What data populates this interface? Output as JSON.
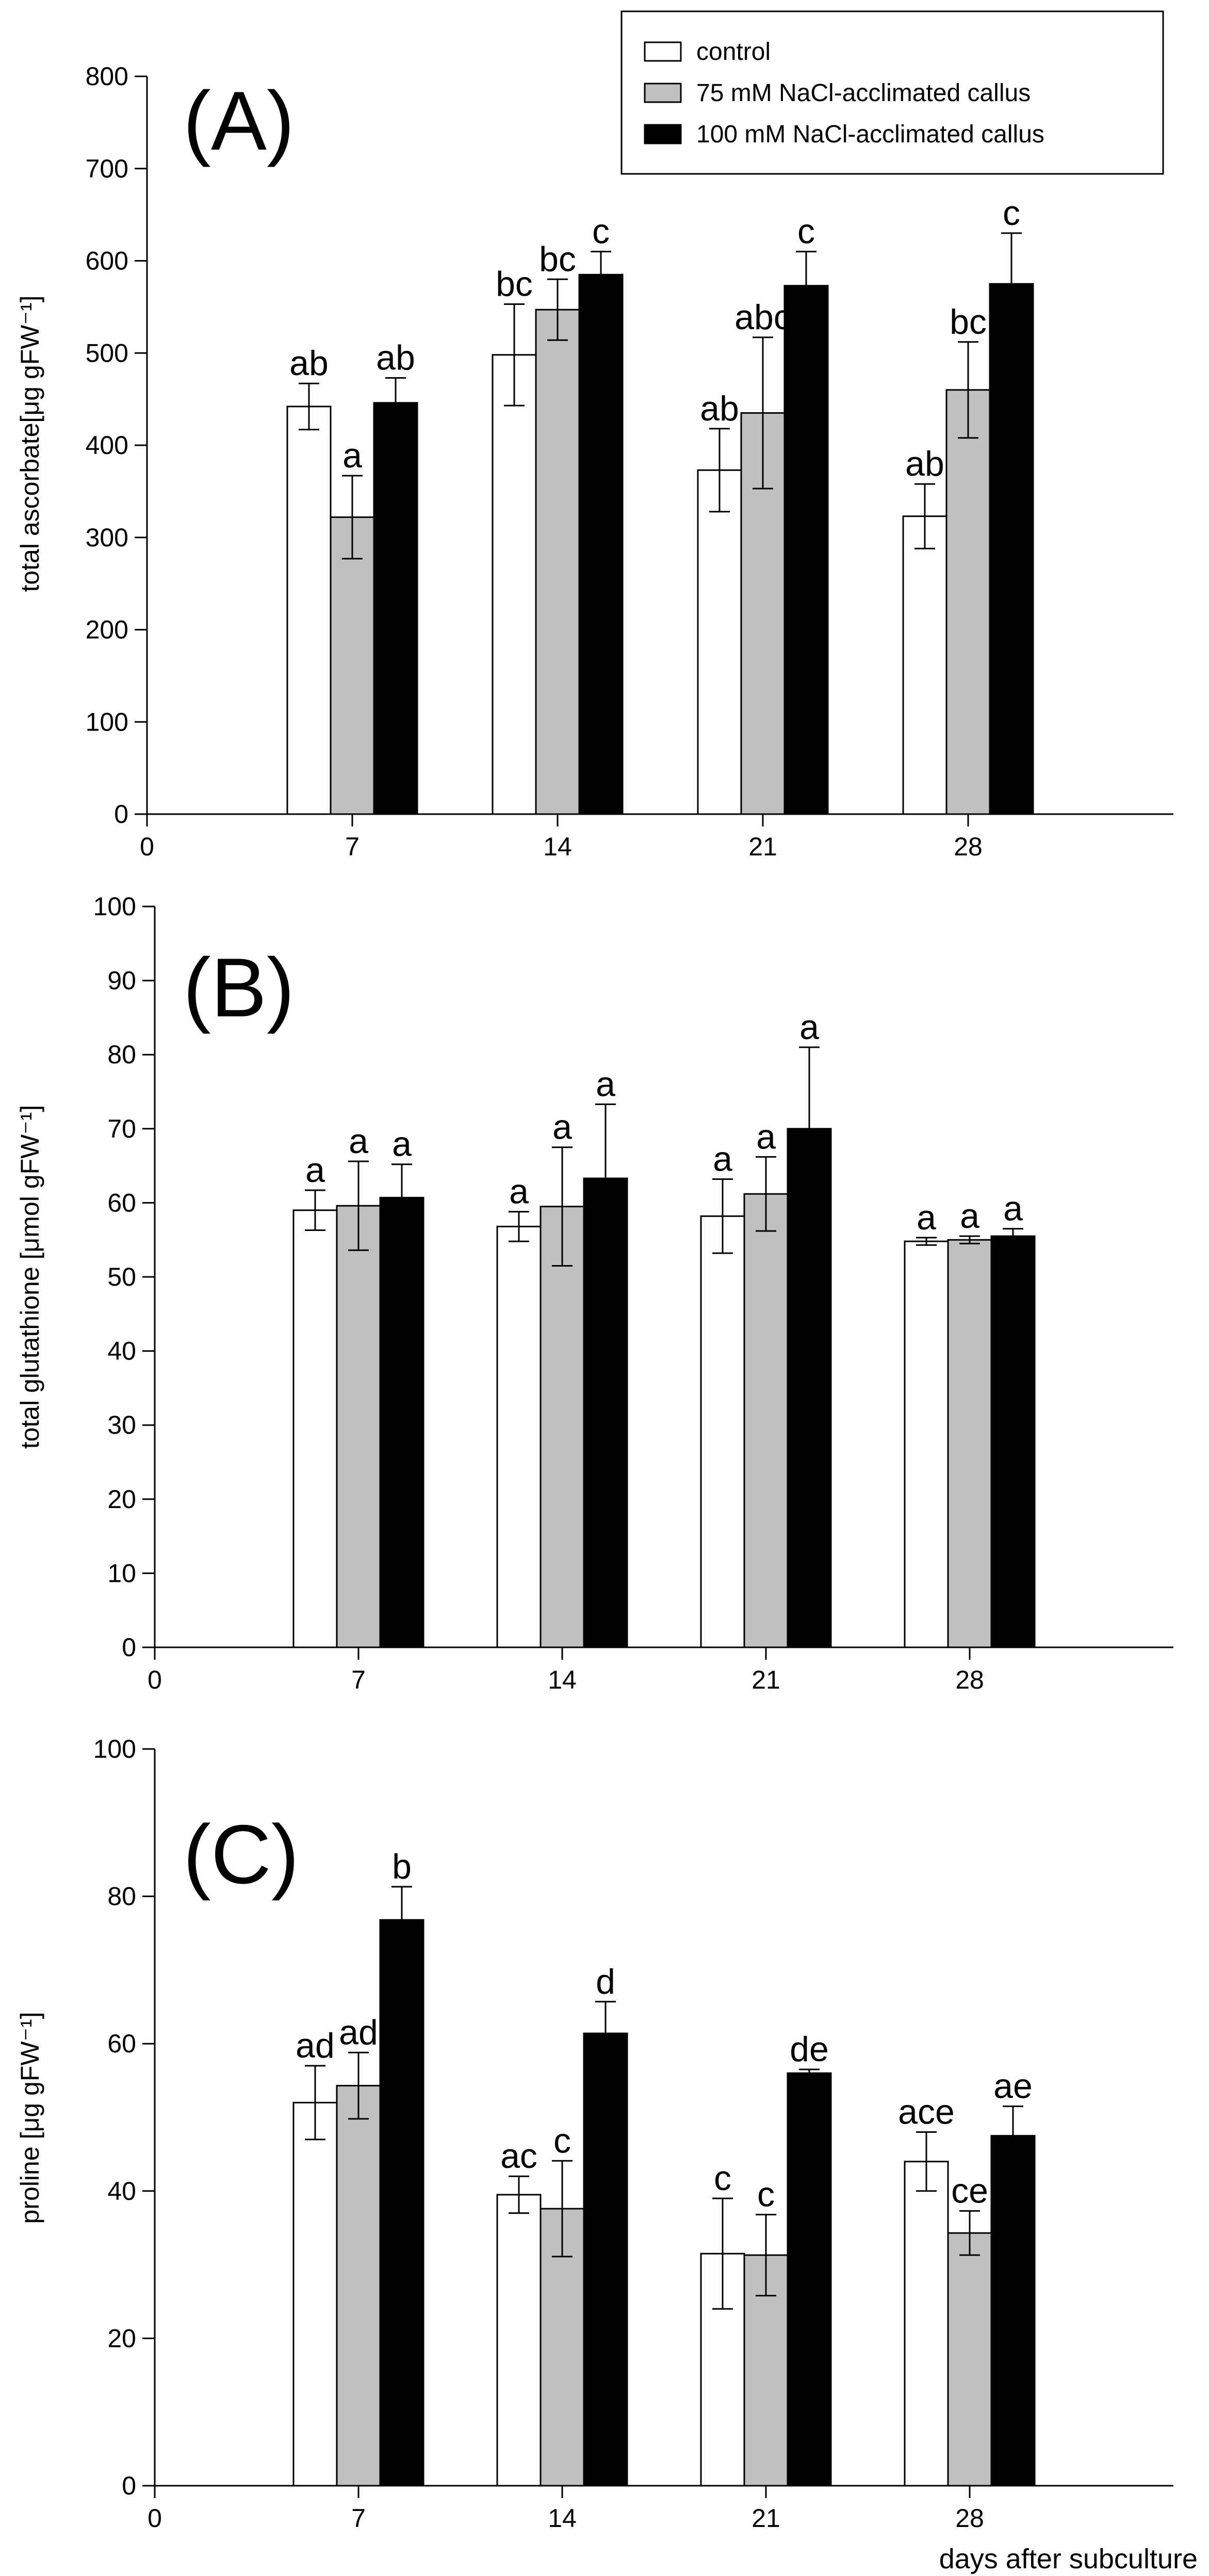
{
  "legend": {
    "entries": [
      {
        "label": "control",
        "color": "#ffffff"
      },
      {
        "label": "75 mM NaCl-acclimated callus",
        "color": "#c0c0c0"
      },
      {
        "label": "100 mM NaCl-acclimated callus",
        "color": "#000000"
      }
    ]
  },
  "chart_data": [
    {
      "type": "bar",
      "panel": "(A)",
      "ylabel": "total ascorbate[μg gFW⁻¹]",
      "xlabel": "",
      "x_ticks": [
        "0",
        "7",
        "14",
        "21",
        "28"
      ],
      "y_ticks": [
        "0",
        "100",
        "200",
        "300",
        "400",
        "500",
        "600",
        "700",
        "800"
      ],
      "xlim": [
        0,
        35
      ],
      "ylim": [
        0,
        800
      ],
      "categories": [
        "7",
        "14",
        "21",
        "28"
      ],
      "series": [
        {
          "name": "control",
          "color": "#ffffff",
          "values": [
            442,
            498,
            373,
            323
          ],
          "errors": [
            25,
            55,
            45,
            35
          ],
          "letters": [
            "ab",
            "bc",
            "ab",
            "ab"
          ]
        },
        {
          "name": "75 mM NaCl-acclimated callus",
          "color": "#c0c0c0",
          "values": [
            322,
            547,
            435,
            460
          ],
          "errors": [
            45,
            33,
            82,
            52
          ],
          "letters": [
            "a",
            "bc",
            "abc",
            "bc"
          ]
        },
        {
          "name": "100 mM NaCl-acclimated callus",
          "color": "#000000",
          "values": [
            446,
            585,
            573,
            575
          ],
          "errors": [
            27,
            25,
            37,
            55
          ],
          "letters": [
            "ab",
            "c",
            "c",
            "c"
          ]
        }
      ]
    },
    {
      "type": "bar",
      "panel": "(B)",
      "ylabel": "total glutathione [μmol gFW⁻¹]",
      "xlabel": "",
      "x_ticks": [
        "0",
        "7",
        "14",
        "21",
        "28"
      ],
      "y_ticks": [
        "0",
        "10",
        "20",
        "30",
        "40",
        "50",
        "60",
        "70",
        "80",
        "90",
        "100"
      ],
      "xlim": [
        0,
        35
      ],
      "ylim": [
        0,
        100
      ],
      "categories": [
        "7",
        "14",
        "21",
        "28"
      ],
      "series": [
        {
          "name": "control",
          "color": "#ffffff",
          "values": [
            59,
            56.8,
            58.2,
            54.8
          ],
          "errors": [
            2.7,
            2,
            5,
            0.5
          ],
          "letters": [
            "a",
            "a",
            "a",
            "a"
          ]
        },
        {
          "name": "75 mM NaCl-acclimated callus",
          "color": "#c0c0c0",
          "values": [
            59.6,
            59.5,
            61.2,
            55
          ],
          "errors": [
            6,
            8,
            5,
            0.5
          ],
          "letters": [
            "a",
            "a",
            "a",
            "a"
          ]
        },
        {
          "name": "100 mM NaCl-acclimated callus",
          "color": "#000000",
          "values": [
            60.7,
            63.3,
            70,
            55.5
          ],
          "errors": [
            4.5,
            10,
            11,
            1
          ],
          "letters": [
            "a",
            "a",
            "a",
            "a"
          ]
        }
      ]
    },
    {
      "type": "bar",
      "panel": "(C)",
      "ylabel": "proline [μg gFW⁻¹]",
      "xlabel": "days after subculture",
      "x_ticks": [
        "0",
        "7",
        "14",
        "21",
        "28"
      ],
      "y_ticks": [
        "0",
        "20",
        "40",
        "60",
        "80",
        "100"
      ],
      "xlim": [
        0,
        35
      ],
      "ylim": [
        0,
        100
      ],
      "categories": [
        "7",
        "14",
        "21",
        "28"
      ],
      "series": [
        {
          "name": "control",
          "color": "#ffffff",
          "values": [
            52,
            39.5,
            31.5,
            44
          ],
          "errors": [
            5,
            2.5,
            7.5,
            4
          ],
          "letters": [
            "ad",
            "ac",
            "c",
            "ace"
          ]
        },
        {
          "name": "75 mM NaCl-acclimated callus",
          "color": "#c0c0c0",
          "values": [
            54.3,
            37.6,
            31.3,
            34.3
          ],
          "errors": [
            4.5,
            6.5,
            5.5,
            3
          ],
          "letters": [
            "ad",
            "c",
            "c",
            "ce"
          ]
        },
        {
          "name": "100 mM NaCl-acclimated callus",
          "color": "#000000",
          "values": [
            76.8,
            61.4,
            56,
            47.5
          ],
          "errors": [
            4.5,
            4.3,
            0.5,
            4
          ],
          "letters": [
            "b",
            "d",
            "de",
            "ae"
          ]
        }
      ]
    }
  ]
}
